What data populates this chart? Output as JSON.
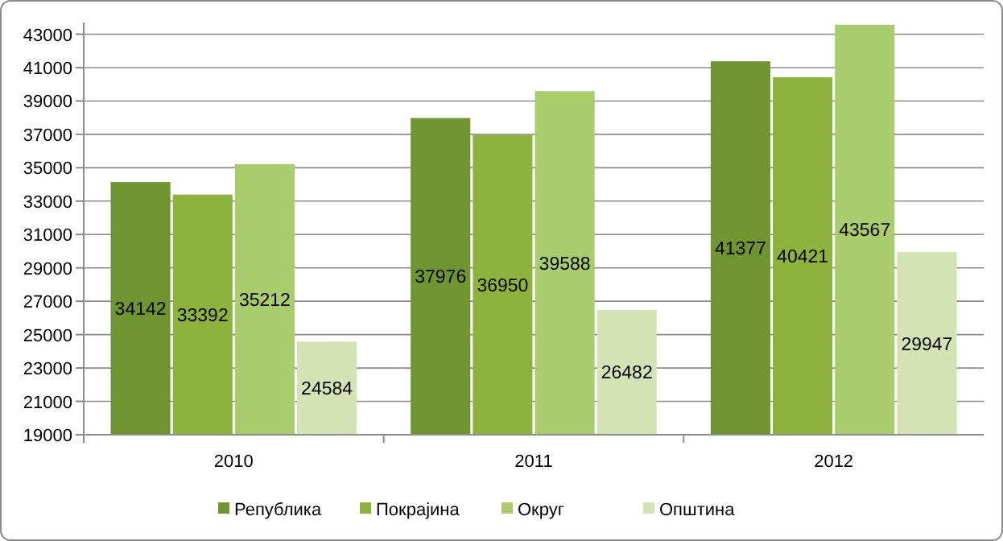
{
  "chart_data": {
    "type": "bar",
    "categories": [
      "2010",
      "2011",
      "2012"
    ],
    "series": [
      {
        "name": "Република",
        "color": "#6f9530",
        "values": [
          34142,
          37976,
          41377
        ]
      },
      {
        "name": "Покрајина",
        "color": "#8db33c",
        "values": [
          33392,
          36950,
          40421
        ]
      },
      {
        "name": "Округ",
        "color": "#a9cc6c",
        "values": [
          35212,
          39588,
          43567
        ]
      },
      {
        "name": "Општина",
        "color": "#d3e3b4",
        "values": [
          24584,
          26482,
          29947
        ]
      }
    ],
    "ylim": [
      19000,
      43700
    ],
    "yticks": [
      19000,
      21000,
      23000,
      25000,
      27000,
      29000,
      31000,
      33000,
      35000,
      37000,
      39000,
      41000,
      43000
    ],
    "grid": "y",
    "legend": "bottom",
    "data_labels": true
  }
}
